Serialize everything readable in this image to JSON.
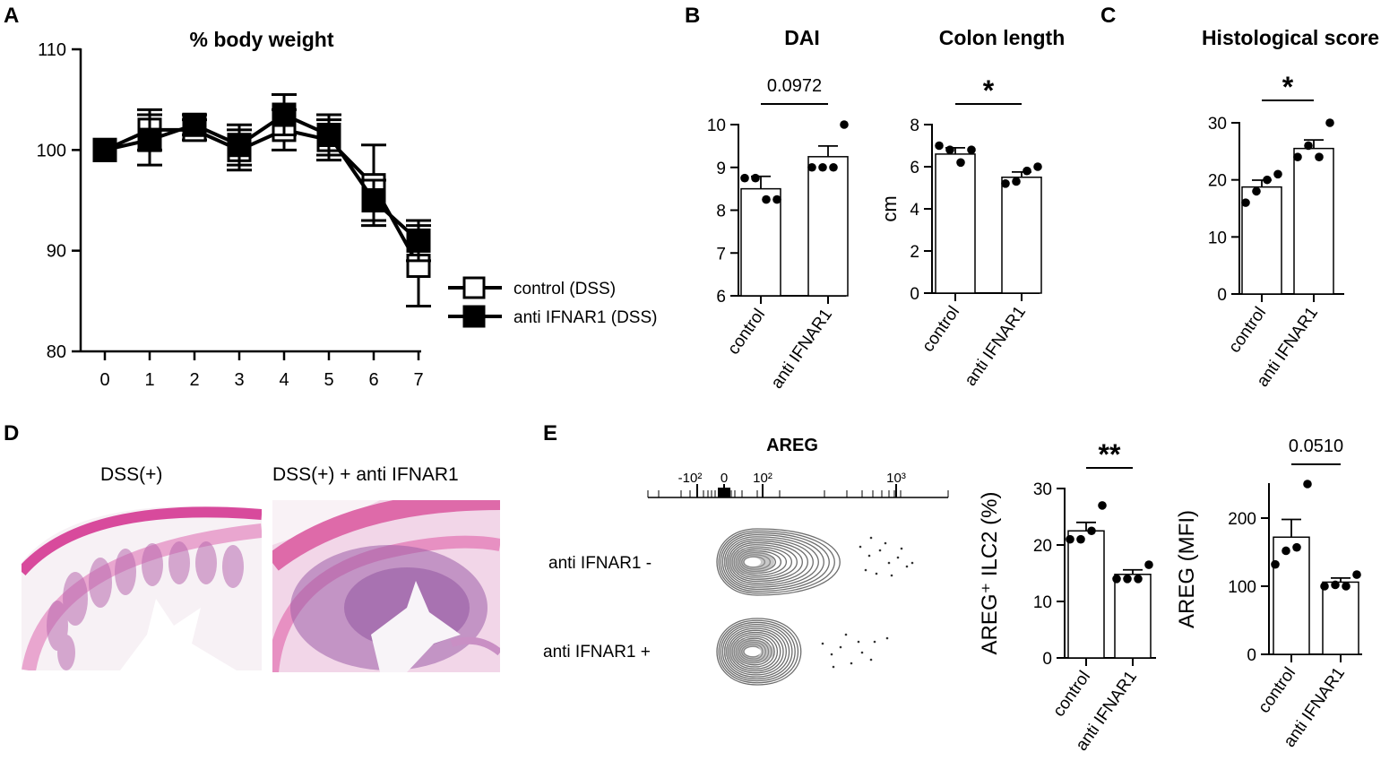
{
  "panel_labels": {
    "a": "A",
    "b": "B",
    "c": "C",
    "d": "D",
    "e": "E"
  },
  "chart_data": [
    {
      "id": "A",
      "type": "line",
      "title": "% body weight",
      "x": [
        0,
        1,
        2,
        3,
        4,
        5,
        6,
        7
      ],
      "ylim": [
        80,
        110
      ],
      "yticks": [
        80,
        90,
        100,
        110
      ],
      "series": [
        {
          "name": "control (DSS)",
          "marker": "open-square",
          "values": [
            100,
            102,
            102,
            100,
            102,
            101,
            96.5,
            88.5
          ],
          "err": [
            0,
            2,
            1,
            2,
            2,
            2,
            4,
            4
          ]
        },
        {
          "name": "anti IFNAR1 (DSS)",
          "marker": "filled-square",
          "values": [
            100,
            101,
            102.5,
            100.5,
            103.5,
            101.5,
            95,
            91
          ],
          "err": [
            0,
            2.5,
            1,
            2,
            2,
            2,
            2,
            2
          ]
        }
      ],
      "grid": false,
      "legend": "right"
    },
    {
      "id": "B-DAI",
      "type": "bar",
      "title": "DAI",
      "ylabel": "",
      "categories": [
        "control",
        "anti IFNAR1"
      ],
      "values": [
        8.5,
        9.25
      ],
      "sem": [
        0.29,
        0.25
      ],
      "points": [
        [
          8.75,
          8.75,
          8.25,
          8.25
        ],
        [
          9.0,
          9.0,
          9.0,
          10.0
        ]
      ],
      "ylim": [
        6,
        10
      ],
      "yticks": [
        6,
        7,
        8,
        9,
        10
      ],
      "significance": "0.0972"
    },
    {
      "id": "B-colon",
      "type": "bar",
      "title": "Colon length",
      "ylabel": "cm",
      "categories": [
        "control",
        "anti IFNAR1"
      ],
      "values": [
        6.6,
        5.5
      ],
      "sem": [
        0.3,
        0.25
      ],
      "points": [
        [
          7.0,
          6.8,
          6.2,
          6.8
        ],
        [
          5.2,
          5.3,
          5.8,
          6.0
        ]
      ],
      "ylim": [
        0,
        8
      ],
      "yticks": [
        0,
        2,
        4,
        6,
        8
      ],
      "significance": "*"
    },
    {
      "id": "C",
      "type": "bar",
      "title": "Histological score",
      "ylabel": "",
      "categories": [
        "control",
        "anti IFNAR1"
      ],
      "values": [
        18.75,
        25.5
      ],
      "sem": [
        1.2,
        1.5
      ],
      "points": [
        [
          16.0,
          18.0,
          20.0,
          21.0
        ],
        [
          24.0,
          26.0,
          24.0,
          30.0
        ]
      ],
      "ylim": [
        0,
        30
      ],
      "yticks": [
        0,
        10,
        20,
        30
      ],
      "significance": "*"
    },
    {
      "id": "E-percent",
      "type": "bar",
      "ylabel": "AREG⁺ ILC2 (%)",
      "categories": [
        "control",
        "anti IFNAR1"
      ],
      "values": [
        22.5,
        14.8
      ],
      "sem": [
        1.5,
        0.8
      ],
      "points": [
        [
          21.0,
          21.0,
          22.5,
          27.0
        ],
        [
          14.0,
          14.0,
          14.0,
          16.5
        ]
      ],
      "ylim": [
        0,
        30
      ],
      "yticks": [
        0,
        10,
        20,
        30
      ],
      "significance": "**"
    },
    {
      "id": "E-mfi",
      "type": "bar",
      "ylabel": "AREG (MFI)",
      "categories": [
        "control",
        "anti IFNAR1"
      ],
      "values": [
        172,
        106
      ],
      "sem": [
        26,
        6
      ],
      "points": [
        [
          132,
          152,
          157,
          250
        ],
        [
          100,
          102,
          100,
          117
        ]
      ],
      "ylim": [
        0,
        250
      ],
      "yticks": [
        0,
        100,
        200
      ],
      "significance": "0.0510"
    }
  ],
  "histology": {
    "left_label": "DSS(+)",
    "right_label": "DSS(+) + anti IFNAR1"
  },
  "flow": {
    "axis_title": "AREG",
    "tick_labels": [
      "-10²",
      "0",
      "10²",
      "10³"
    ],
    "rows": [
      "anti IFNAR1 -",
      "anti IFNAR1 +"
    ]
  }
}
